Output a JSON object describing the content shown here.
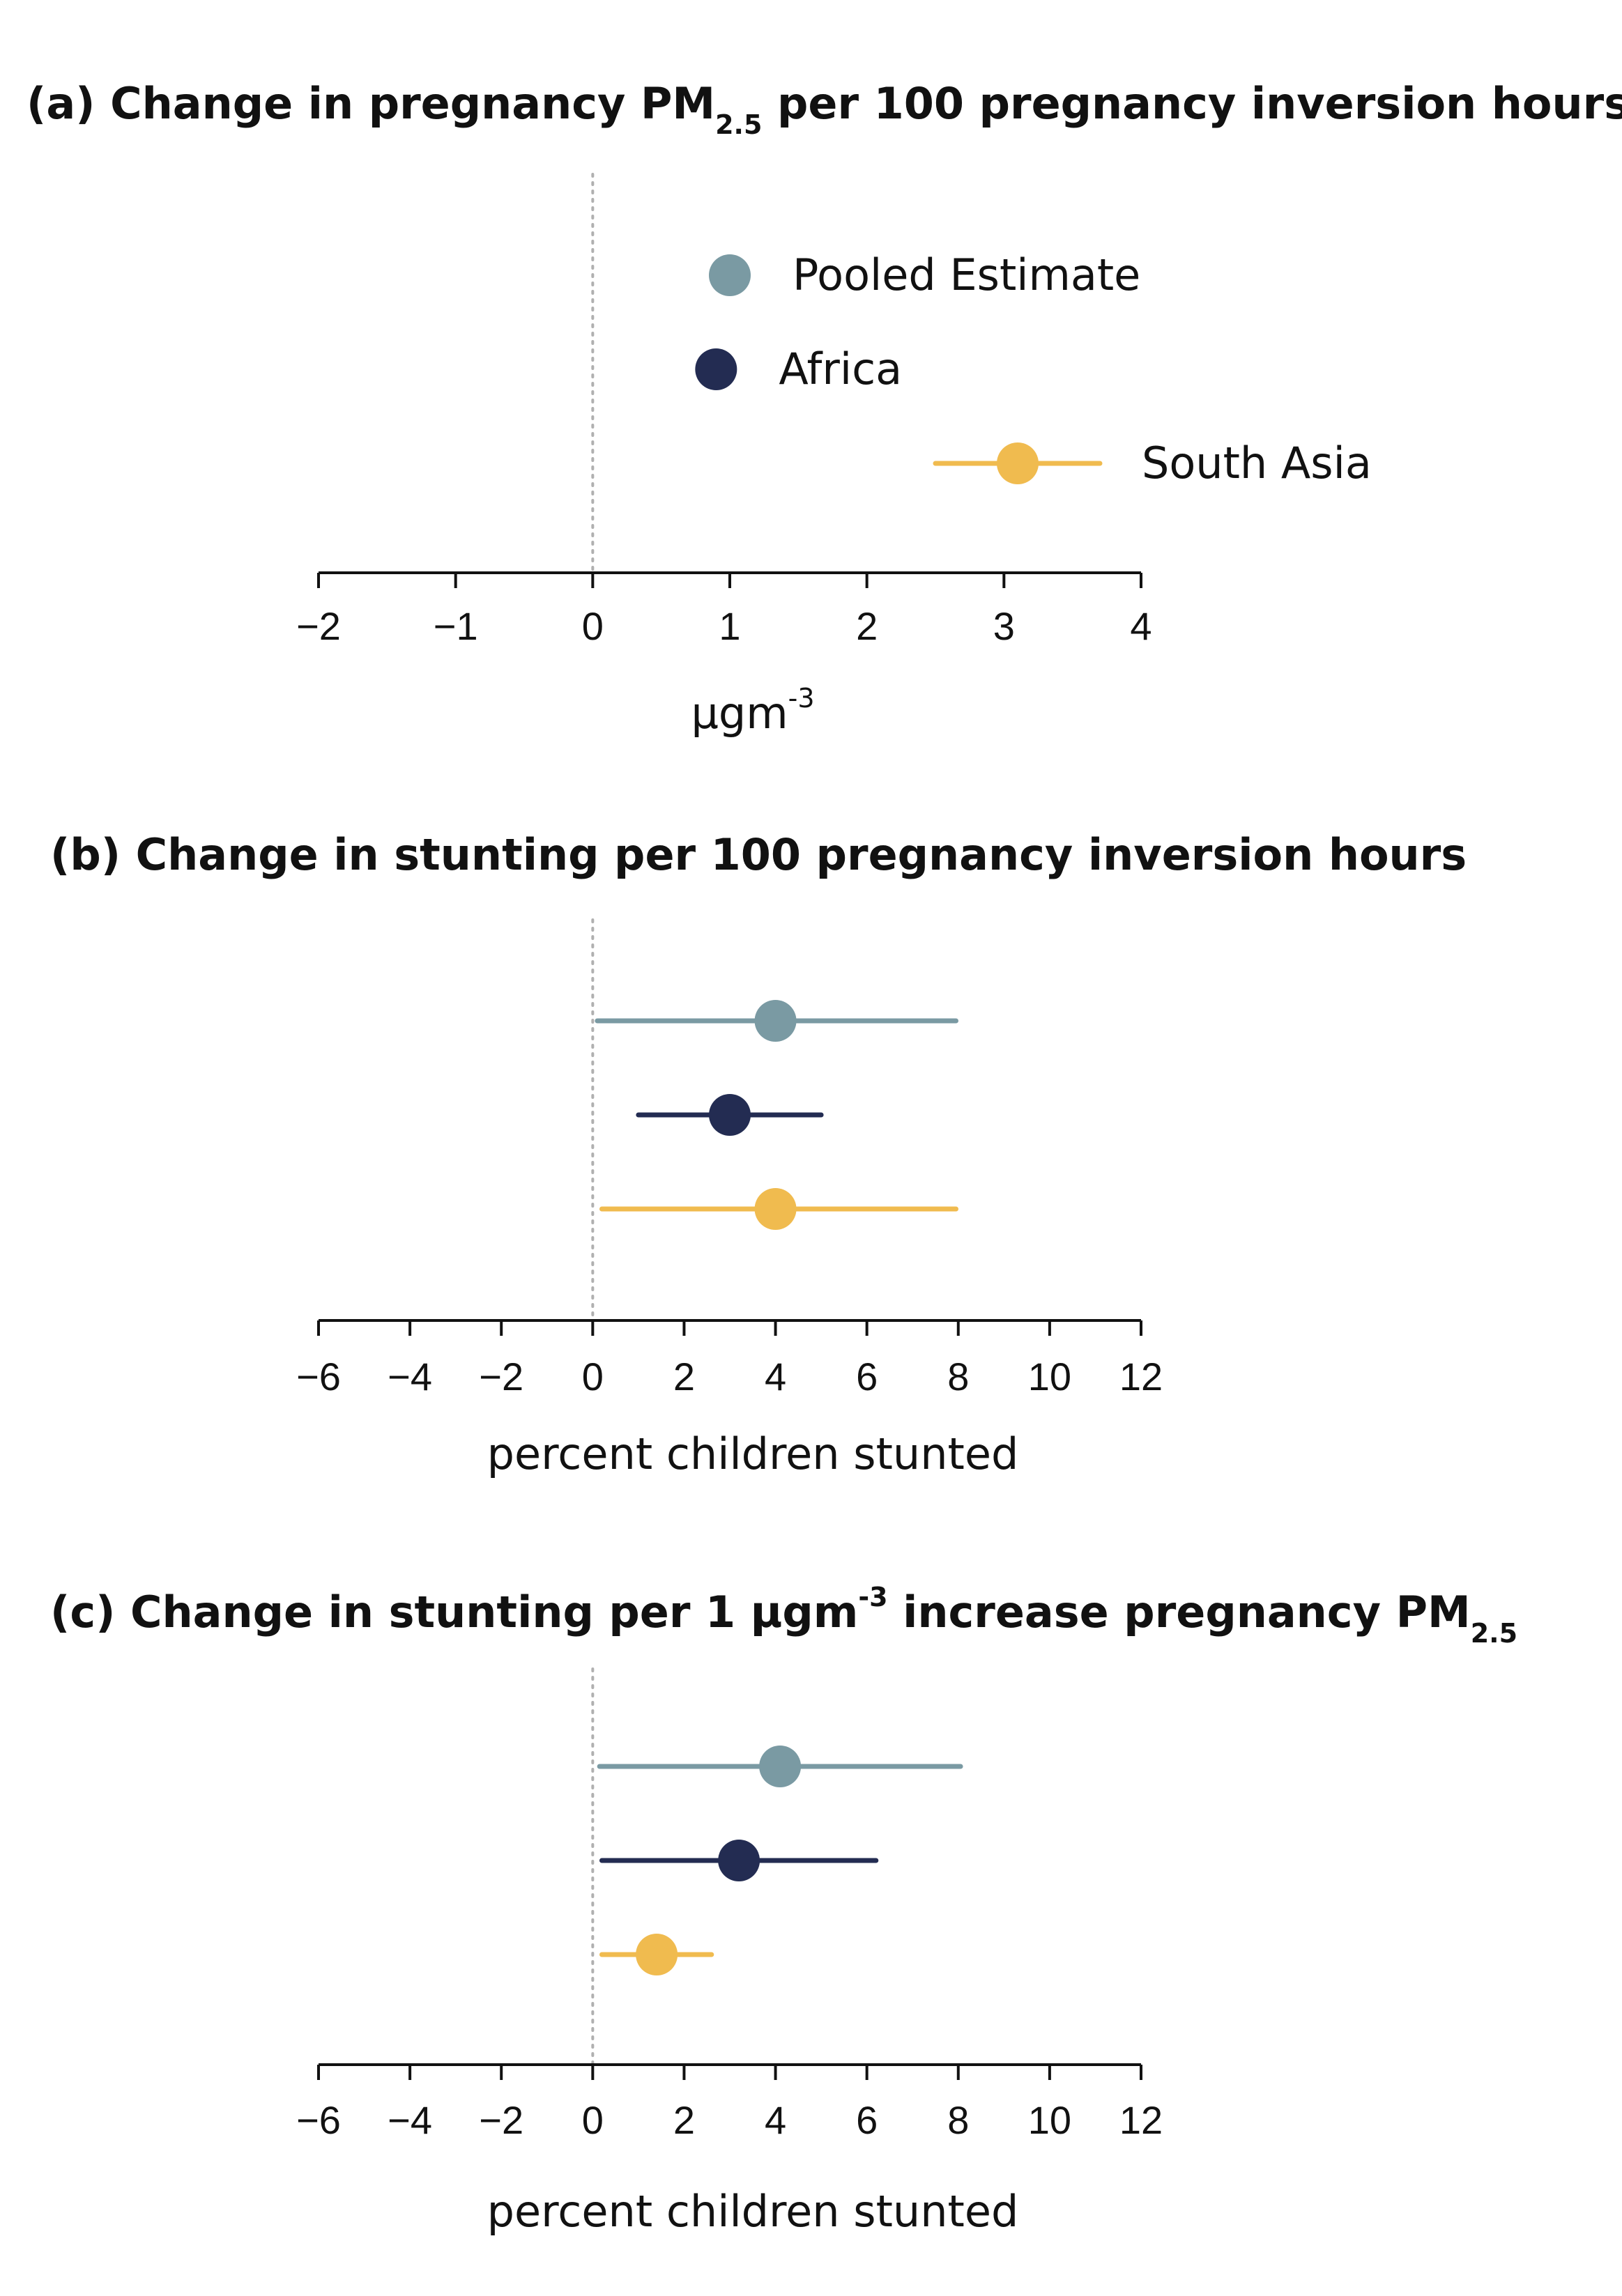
{
  "colors": {
    "pooled": "#7a9aa3",
    "africa": "#232c52",
    "south_asia": "#f0bb4f",
    "zero_line": "#b0b0b0"
  },
  "chart_data": [
    {
      "type": "scatter",
      "panel": "a",
      "title_parts": [
        "(a) Change in pregnancy PM",
        "2.5",
        " per 100 pregnancy inversion hours"
      ],
      "xlabel_parts": [
        "µgm",
        "-3"
      ],
      "xlim": [
        -2,
        4
      ],
      "xticks": [
        -2,
        -1,
        0,
        1,
        2,
        3,
        4
      ],
      "xtick_labels": [
        "−2",
        "−1",
        "0",
        "1",
        "2",
        "3",
        "4"
      ],
      "series": [
        {
          "name": "Pooled Estimate",
          "color_key": "pooled",
          "estimate": 1.0,
          "ci": [
            1.0,
            1.0
          ]
        },
        {
          "name": "Africa",
          "color_key": "africa",
          "estimate": 0.9,
          "ci": [
            0.9,
            0.9
          ]
        },
        {
          "name": "South Asia",
          "color_key": "south_asia",
          "estimate": 3.1,
          "ci": [
            2.5,
            3.7
          ]
        }
      ],
      "legend": "inline-labels"
    },
    {
      "type": "scatter",
      "panel": "b",
      "title_parts": [
        "(b) Change in stunting per 100 pregnancy inversion hours"
      ],
      "xlabel_parts": [
        "percent children stunted"
      ],
      "xlim": [
        -6,
        12
      ],
      "xticks": [
        -6,
        -4,
        -2,
        0,
        2,
        4,
        6,
        8,
        10,
        12
      ],
      "xtick_labels": [
        "−6",
        "−4",
        "−2",
        "0",
        "2",
        "4",
        "6",
        "8",
        "10",
        "12"
      ],
      "series": [
        {
          "color_key": "pooled",
          "estimate": 4.0,
          "ci": [
            0.1,
            7.95
          ]
        },
        {
          "color_key": "africa",
          "estimate": 3.0,
          "ci": [
            1.0,
            5.0
          ]
        },
        {
          "color_key": "south_asia",
          "estimate": 4.0,
          "ci": [
            0.2,
            7.95
          ]
        }
      ]
    },
    {
      "type": "scatter",
      "panel": "c",
      "title_parts": [
        "(c) Change in stunting per 1 µgm",
        "-3",
        " increase pregnancy PM",
        "2.5"
      ],
      "xlabel_parts": [
        "percent children stunted"
      ],
      "xlim": [
        -6,
        12
      ],
      "xticks": [
        -6,
        -4,
        -2,
        0,
        2,
        4,
        6,
        8,
        10,
        12
      ],
      "xtick_labels": [
        "−6",
        "−4",
        "−2",
        "0",
        "2",
        "4",
        "6",
        "8",
        "10",
        "12"
      ],
      "series": [
        {
          "color_key": "pooled",
          "estimate": 4.1,
          "ci": [
            0.15,
            8.05
          ]
        },
        {
          "color_key": "africa",
          "estimate": 3.2,
          "ci": [
            0.2,
            6.2
          ]
        },
        {
          "color_key": "south_asia",
          "estimate": 1.4,
          "ci": [
            0.2,
            2.6
          ]
        }
      ]
    }
  ]
}
